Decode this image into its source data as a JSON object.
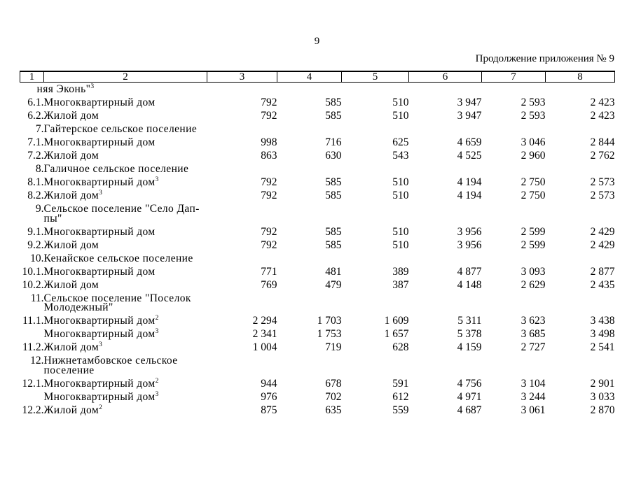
{
  "page": {
    "number": "9",
    "continuation_label": "Продолжение приложения № 9"
  },
  "table": {
    "headers": [
      "1",
      "2",
      "3",
      "4",
      "5",
      "6",
      "7",
      "8"
    ],
    "rows": [
      {
        "num": "",
        "name": "няя Эконь\"",
        "sup": "3",
        "outdent": true
      },
      {
        "num": "6.1.",
        "name": "Многоквартирный дом",
        "values": [
          "792",
          "585",
          "510",
          "3 947",
          "2 593",
          "2 423"
        ]
      },
      {
        "num": "6.2.",
        "name": "Жилой дом",
        "values": [
          "792",
          "585",
          "510",
          "3 947",
          "2 593",
          "2 423"
        ]
      },
      {
        "num": "7.",
        "name": "Гайтерское сельское поселение",
        "section": true
      },
      {
        "num": "7.1.",
        "name": "Многоквартирный дом",
        "values": [
          "998",
          "716",
          "625",
          "4 659",
          "3 046",
          "2 844"
        ]
      },
      {
        "num": "7.2.",
        "name": "Жилой дом",
        "values": [
          "863",
          "630",
          "543",
          "4 525",
          "2 960",
          "2 762"
        ]
      },
      {
        "num": "8.",
        "name": "Галичное сельское поселение",
        "section": true
      },
      {
        "num": "8.1.",
        "name": "Многоквартирный дом",
        "sup": "3",
        "values": [
          "792",
          "585",
          "510",
          "4 194",
          "2 750",
          "2 573"
        ]
      },
      {
        "num": "8.2.",
        "name": "Жилой дом",
        "sup": "3",
        "values": [
          "792",
          "585",
          "510",
          "4 194",
          "2 750",
          "2 573"
        ]
      },
      {
        "num": "9.",
        "name": "Сельское поселение \"Село Дап-\nпы\"",
        "section": true
      },
      {
        "num": "9.1.",
        "name": "Многоквартирный дом",
        "values": [
          "792",
          "585",
          "510",
          "3 956",
          "2 599",
          "2 429"
        ]
      },
      {
        "num": "9.2.",
        "name": "Жилой дом",
        "values": [
          "792",
          "585",
          "510",
          "3 956",
          "2 599",
          "2 429"
        ]
      },
      {
        "num": "10.",
        "name": "Кенайское сельское поселение",
        "section": true
      },
      {
        "num": "10.1.",
        "name": "Многоквартирный дом",
        "values": [
          "771",
          "481",
          "389",
          "4 877",
          "3 093",
          "2 877"
        ]
      },
      {
        "num": "10.2.",
        "name": "Жилой дом",
        "values": [
          "769",
          "479",
          "387",
          "4 148",
          "2 629",
          "2 435"
        ]
      },
      {
        "num": "11.",
        "name": "Сельское поселение \"Поселок\nМолодежный\"",
        "section": true
      },
      {
        "num": "11.1.",
        "name": "Многоквартирный дом",
        "sup": "2",
        "values": [
          "2 294",
          "1 703",
          "1 609",
          "5 311",
          "3 623",
          "3 438"
        ]
      },
      {
        "num": "",
        "name": "Многоквартирный дом",
        "sup": "3",
        "values": [
          "2 341",
          "1 753",
          "1 657",
          "5 378",
          "3 685",
          "3 498"
        ]
      },
      {
        "num": "11.2.",
        "name": "Жилой дом",
        "sup": "3",
        "values": [
          "1 004",
          "719",
          "628",
          "4 159",
          "2 727",
          "2 541"
        ]
      },
      {
        "num": "12.",
        "name": "Нижнетамбовское сельское\nпоселение",
        "section": true
      },
      {
        "num": "12.1.",
        "name": "Многоквартирный дом",
        "sup": "2",
        "values": [
          "944",
          "678",
          "591",
          "4 756",
          "3 104",
          "2 901"
        ]
      },
      {
        "num": "",
        "name": "Многоквартирный дом",
        "sup": "3",
        "values": [
          "976",
          "702",
          "612",
          "4 971",
          "3 244",
          "3 033"
        ]
      },
      {
        "num": "12.2.",
        "name": "Жилой дом",
        "sup": "2",
        "values": [
          "875",
          "635",
          "559",
          "4 687",
          "3 061",
          "2 870"
        ]
      }
    ]
  }
}
